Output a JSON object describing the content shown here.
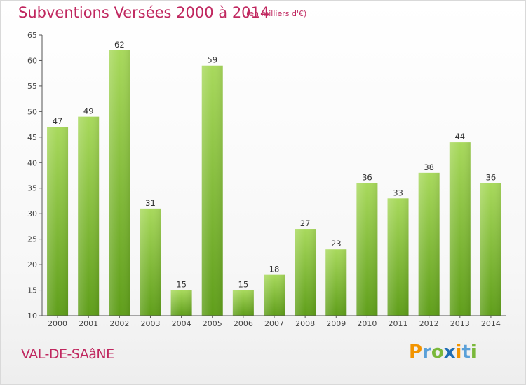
{
  "header": {
    "title": "Subventions Versées 2000 à 2014",
    "unit_note": "(en milliers d'€)"
  },
  "footer": {
    "commune": "VAL-DE-SAâNE",
    "logo_letters": [
      "P",
      "r",
      "o",
      "x",
      "i",
      "t",
      "i"
    ],
    "logo_colors": [
      "#f29400",
      "#5aa0d8",
      "#7ab83a",
      "#1f6db5",
      "#f29400",
      "#5aa0d8",
      "#7ab83a"
    ]
  },
  "colors": {
    "title": "#c0275f",
    "bar_top": "#a8d95c",
    "bar_bottom": "#5f9e1a",
    "axis": "#555555",
    "grid": "#dddddd"
  },
  "chart_data": {
    "type": "bar",
    "categories": [
      "2000",
      "2001",
      "2002",
      "2003",
      "2004",
      "2005",
      "2006",
      "2007",
      "2008",
      "2009",
      "2010",
      "2011",
      "2012",
      "2013",
      "2014"
    ],
    "values": [
      47,
      49,
      62,
      31,
      15,
      59,
      15,
      18,
      27,
      23,
      36,
      33,
      38,
      44,
      36
    ],
    "value_labels": [
      "47",
      "49",
      "62",
      "31",
      "15",
      "59",
      "15",
      "18",
      "27",
      "23",
      "36",
      "33",
      "38",
      "44",
      "36"
    ],
    "y_ticks": [
      "10",
      "15",
      "20",
      "25",
      "30",
      "35",
      "40",
      "45",
      "50",
      "55",
      "60",
      "65"
    ],
    "ylim": [
      10,
      65
    ],
    "grid": false
  }
}
